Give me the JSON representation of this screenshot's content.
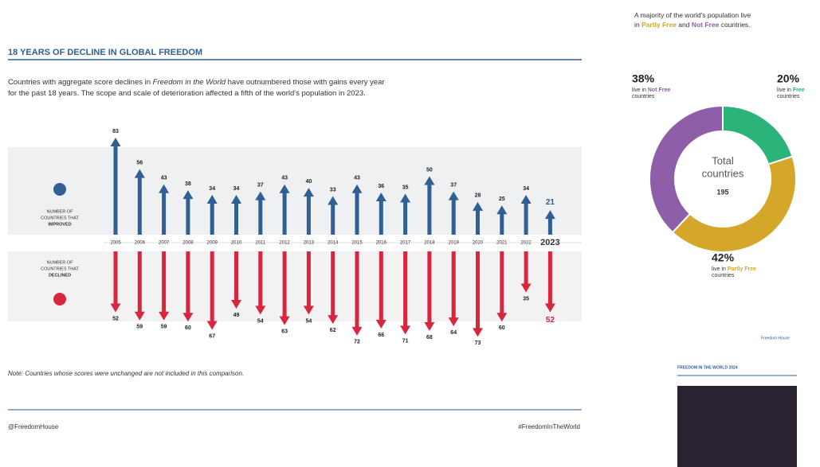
{
  "title": "18 YEARS OF DECLINE IN GLOBAL FREEDOM",
  "subtitle_lines": [
    [
      "Countries with aggregate score declines in ",
      "Freedom in the World",
      " have outnumbered those with gains every year"
    ],
    [
      "for the past 18 years. The scope and scale of deterioration affected a fifth of the world's population in 2023."
    ]
  ],
  "note": "Note: Countries whose scores were unchanged are not included in this comparison.",
  "footer": {
    "left": "@FreedomHouse",
    "right": "#FreedomInTheWorld"
  },
  "sidebar": {
    "header_lines": [
      [
        "A majority of the world's population live"
      ],
      [
        "in ",
        "Partly Free",
        " and ",
        "Not Free",
        " countries."
      ]
    ],
    "logo": "Freedom House",
    "cover_title": "FREEDOM IN THE WORLD 2024"
  },
  "chart_data": [
    {
      "type": "arrows",
      "categories": [
        "2005",
        "2006",
        "2007",
        "2008",
        "2009",
        "2010",
        "2011",
        "2012",
        "2013",
        "2014",
        "2015",
        "2016",
        "2017",
        "2018",
        "2019",
        "2020",
        "2021",
        "2022",
        "2023"
      ],
      "ylim": [
        0,
        85
      ],
      "series": [
        {
          "label_lines": [
            "NUMBER OF",
            "COUNTRIES THAT",
            "IMPROVED"
          ],
          "direction": "up",
          "color": "#2f5f93",
          "values": [
            83,
            56,
            43,
            38,
            34,
            34,
            37,
            43,
            40,
            33,
            43,
            36,
            35,
            50,
            37,
            28,
            25,
            34,
            21
          ]
        },
        {
          "label_lines": [
            "NUMBER OF",
            "COUNTRIES THAT",
            "DECLINED"
          ],
          "direction": "down",
          "color": "#d7263d",
          "values": [
            52,
            59,
            59,
            60,
            67,
            49,
            54,
            63,
            54,
            62,
            72,
            66,
            71,
            68,
            64,
            73,
            60,
            35,
            52
          ]
        }
      ]
    },
    {
      "type": "donut",
      "categories": [
        "Free",
        "Partly Free",
        "Not Free"
      ],
      "values": [
        20,
        42,
        38
      ],
      "value_labels": [
        "20%",
        "42%",
        "38%"
      ],
      "colors": [
        "#2bb37a",
        "#d4a62a",
        "#8e5ea8"
      ],
      "label_prefix": "live in",
      "label_suffix": "countries",
      "center_lines": [
        "Total",
        "countries"
      ],
      "total": 195
    }
  ]
}
